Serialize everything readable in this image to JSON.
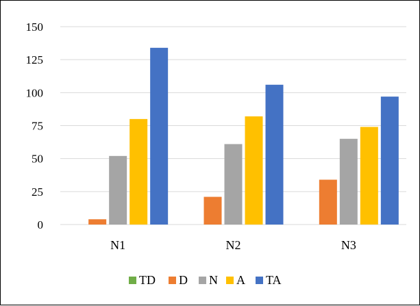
{
  "chart_data": {
    "type": "bar",
    "categories": [
      "N1",
      "N2",
      "N3"
    ],
    "series": [
      {
        "name": "TD",
        "values": [
          0,
          0,
          0
        ],
        "color": "#70ad47"
      },
      {
        "name": "D",
        "values": [
          4,
          21,
          34
        ],
        "color": "#ed7d31"
      },
      {
        "name": "N",
        "values": [
          52,
          61,
          65
        ],
        "color": "#a5a5a5"
      },
      {
        "name": "A",
        "values": [
          80,
          82,
          74
        ],
        "color": "#ffc000"
      },
      {
        "name": "TA",
        "values": [
          134,
          106,
          97
        ],
        "color": "#4472c4"
      }
    ],
    "yticks": [
      "0",
      "25",
      "50",
      "75",
      "100",
      "125",
      "150"
    ],
    "ylim": [
      0,
      150
    ],
    "grid": true,
    "legend_position": "bottom"
  }
}
